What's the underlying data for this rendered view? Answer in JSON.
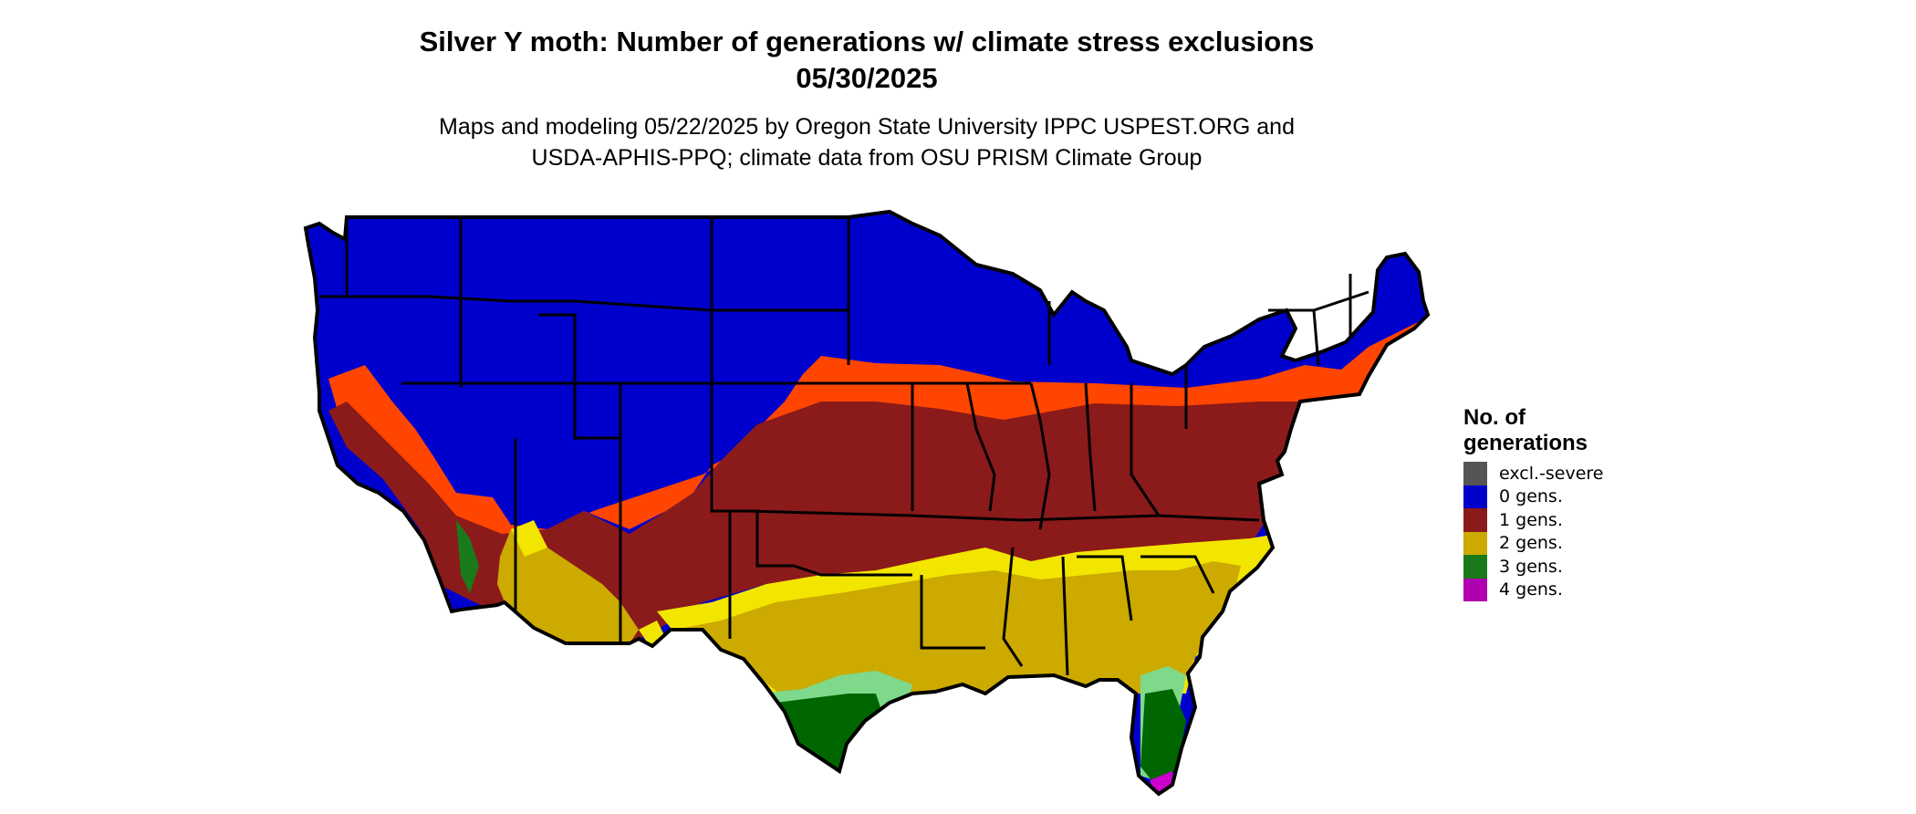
{
  "title_line1": "Silver Y moth: Number of generations w/ climate stress exclusions",
  "title_line2": "05/30/2025",
  "subtitle_line1": "Maps and modeling 05/22/2025 by Oregon State University IPPC USPEST.ORG and",
  "subtitle_line2": "USDA-APHIS-PPQ; climate data from OSU PRISM Climate Group",
  "legend": {
    "title_line1": "No. of",
    "title_line2": "generations",
    "items": [
      {
        "label": "excl.-severe",
        "color": "#555555"
      },
      {
        "label": "0 gens.",
        "color": "#0000cc"
      },
      {
        "label": "1 gens.",
        "color": "#8b1a1a"
      },
      {
        "label": "2 gens.",
        "color": "#ccaa00"
      },
      {
        "label": "3 gens.",
        "color": "#1a7a1a"
      },
      {
        "label": "4 gens.",
        "color": "#b000b0"
      }
    ]
  },
  "map_colors": {
    "zero": "#0000cc",
    "one": "#8b1a1a",
    "one_light": "#ff4500",
    "two": "#ccaa00",
    "two_light": "#f2e600",
    "three": "#006600",
    "three_light": "#7fd98a",
    "four": "#cc00cc",
    "border": "#000000"
  }
}
